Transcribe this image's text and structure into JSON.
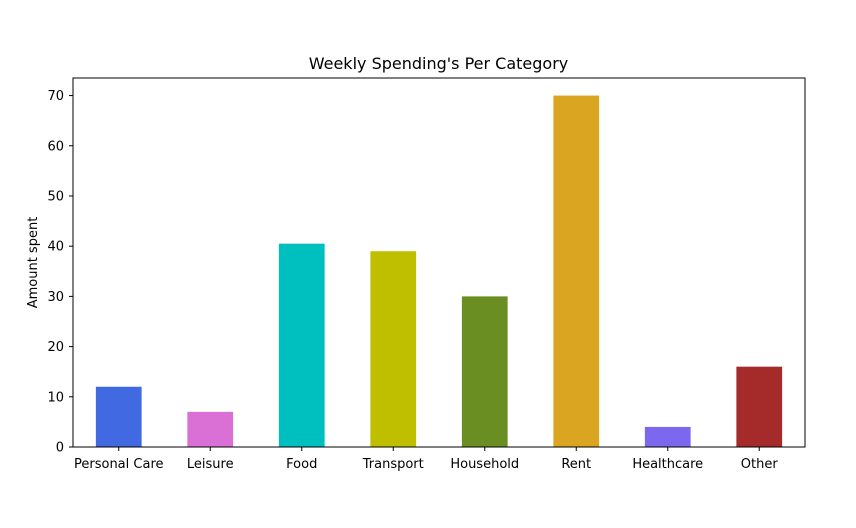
{
  "chart_data": {
    "type": "bar",
    "title": "Weekly Spending's Per Category",
    "xlabel": "",
    "ylabel": "Amount spent",
    "categories": [
      "Personal Care",
      "Leisure",
      "Food",
      "Transport",
      "Household",
      "Rent",
      "Healthcare",
      "Other"
    ],
    "values": [
      12,
      7,
      40.5,
      39,
      30,
      70,
      4,
      16
    ],
    "colors": [
      "#4169E1",
      "#DA70D6",
      "#00BFBF",
      "#BFBF00",
      "#6B8E23",
      "#DAA520",
      "#7B68EE",
      "#A52A2A"
    ],
    "ylim": [
      0,
      73.5
    ],
    "yticks": [
      0,
      10,
      20,
      30,
      40,
      50,
      60,
      70
    ],
    "grid": false,
    "legend": "none"
  }
}
